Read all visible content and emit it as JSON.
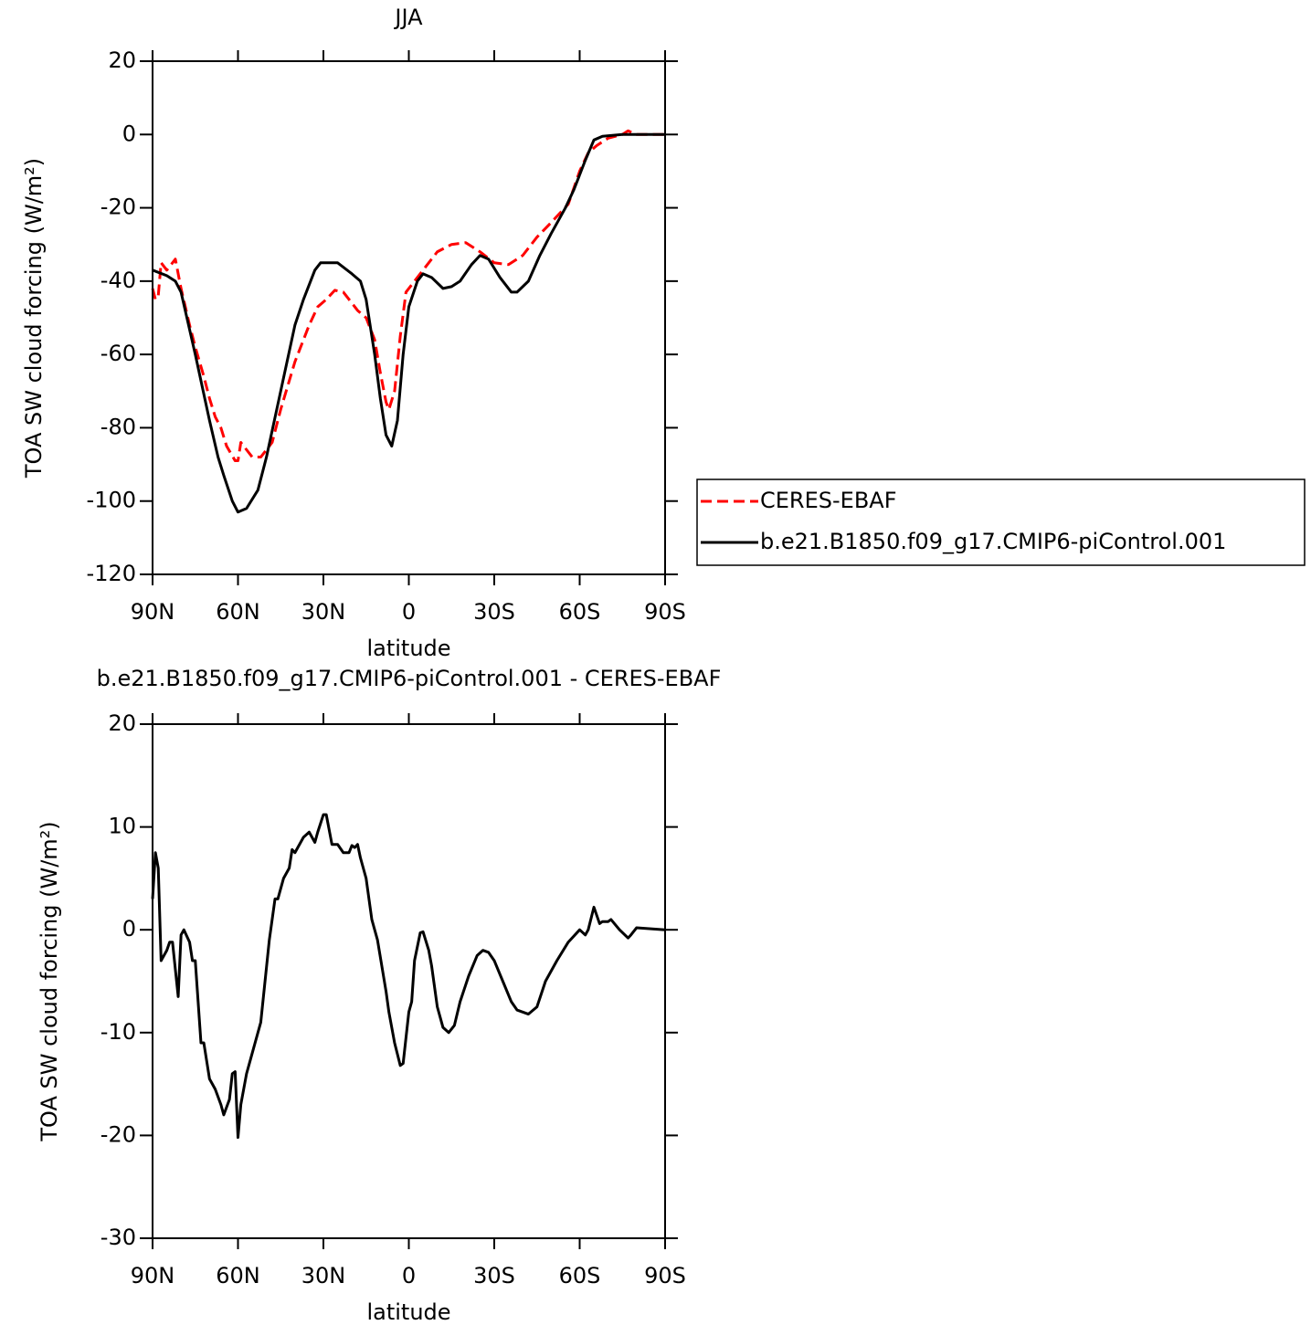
{
  "chart_data": [
    {
      "type": "line",
      "title": "JJA",
      "xlabel": "latitude",
      "ylabel": "TOA SW cloud forcing (W/m²)",
      "xlim": [
        90,
        -90
      ],
      "ylim": [
        -120,
        20
      ],
      "xticks": [
        {
          "value": 90,
          "label": "90N"
        },
        {
          "value": 60,
          "label": "60N"
        },
        {
          "value": 30,
          "label": "30N"
        },
        0,
        {
          "value": -30,
          "label": "30S"
        },
        {
          "value": -60,
          "label": "60S"
        },
        {
          "value": -90,
          "label": "90S"
        }
      ],
      "yticks": [
        -120,
        -100,
        -80,
        -60,
        -40,
        -20,
        0,
        20
      ],
      "legend": "outside right",
      "series": [
        {
          "name": "CERES-EBAF",
          "color": "#ff0000",
          "dash": true,
          "x": [
            90,
            89,
            88,
            87,
            85,
            83,
            82,
            80,
            77,
            75,
            72,
            70,
            68,
            66,
            64,
            61,
            60,
            59,
            57,
            55,
            52,
            48,
            45,
            40,
            35,
            32,
            29,
            26,
            23,
            20,
            18,
            15,
            12,
            10,
            8,
            7,
            5,
            3,
            1,
            -2,
            -5,
            -10,
            -15,
            -20,
            -25,
            -30,
            -35,
            -40,
            -45,
            -50,
            -56,
            -60,
            -63,
            -66,
            -70,
            -75,
            -77,
            -80,
            -90
          ],
          "values": [
            -42,
            -45,
            -44,
            -35,
            -37,
            -35,
            -34,
            -42,
            -52,
            -58,
            -66,
            -72,
            -77,
            -80,
            -85,
            -89,
            -89,
            -84,
            -86,
            -88,
            -88,
            -84,
            -75,
            -62,
            -52,
            -47,
            -45,
            -42.5,
            -43,
            -46,
            -48,
            -50,
            -56,
            -65,
            -73,
            -75,
            -70,
            -55,
            -43,
            -40,
            -37,
            -32,
            -30,
            -29.5,
            -32,
            -35,
            -35.5,
            -33,
            -28,
            -24,
            -19,
            -10,
            -5,
            -3,
            -1,
            0,
            1,
            0,
            0
          ]
        },
        {
          "name": "b.e21.B1850.f09_g17.CMIP6-piControl.001",
          "color": "#000000",
          "dash": false,
          "x": [
            90,
            85,
            82,
            80,
            75,
            70,
            67,
            65,
            62,
            60,
            57,
            53,
            50,
            45,
            40,
            37,
            33,
            31,
            28,
            25,
            20,
            17,
            15,
            12,
            10,
            8,
            6,
            4,
            2,
            0,
            -3,
            -5,
            -8,
            -12,
            -15,
            -18,
            -22,
            -25,
            -28,
            -32,
            -36,
            -38,
            -42,
            -46,
            -50,
            -55,
            -58,
            -62,
            -65,
            -68,
            -75,
            -90
          ],
          "values": [
            -37,
            -38.5,
            -40,
            -43,
            -60,
            -78,
            -88,
            -93,
            -100,
            -103,
            -102,
            -97,
            -88,
            -70,
            -52,
            -45,
            -37,
            -35,
            -35,
            -35,
            -38,
            -40,
            -45,
            -60,
            -72,
            -82,
            -85,
            -78,
            -60,
            -47,
            -40,
            -38,
            -39,
            -42,
            -41.5,
            -40,
            -35.5,
            -33,
            -34,
            -39,
            -43,
            -43,
            -40,
            -33,
            -27,
            -20,
            -15,
            -7,
            -1.5,
            -0.5,
            0,
            0
          ]
        }
      ]
    },
    {
      "type": "line",
      "title": "b.e21.B1850.f09_g17.CMIP6-piControl.001 - CERES-EBAF",
      "xlabel": "latitude",
      "ylabel": "TOA SW cloud forcing (W/m²)",
      "xlim": [
        90,
        -90
      ],
      "ylim": [
        -30,
        20
      ],
      "xticks": [
        {
          "value": 90,
          "label": "90N"
        },
        {
          "value": 60,
          "label": "60N"
        },
        {
          "value": 30,
          "label": "30N"
        },
        0,
        {
          "value": -30,
          "label": "30S"
        },
        {
          "value": -60,
          "label": "60S"
        },
        {
          "value": -90,
          "label": "90S"
        }
      ],
      "yticks": [
        -30,
        -20,
        -10,
        0,
        10,
        20
      ],
      "series": [
        {
          "color": "#000000",
          "dash": false,
          "x": [
            90,
            89,
            88,
            87,
            85,
            84,
            83,
            81,
            80,
            79,
            77,
            76,
            75,
            73,
            72,
            70,
            68,
            66,
            65,
            63,
            62,
            61,
            60,
            59,
            57,
            55,
            52,
            49,
            47,
            46,
            44,
            42,
            41,
            40,
            37,
            35,
            33,
            32,
            30,
            29,
            27,
            25,
            23,
            21,
            20,
            19,
            18,
            17,
            15,
            13,
            11,
            8,
            7,
            5,
            3,
            2,
            0,
            -1,
            -2,
            -4,
            -5,
            -7,
            -8,
            -10,
            -12,
            -14,
            -16,
            -18,
            -21,
            -24,
            -26,
            -28,
            -30,
            -33,
            -36,
            -38,
            -42,
            -45,
            -48,
            -52,
            -56,
            -60,
            -62,
            -63,
            -65,
            -67,
            -68,
            -70,
            -71,
            -74,
            -77,
            -78,
            -80,
            -85,
            -90
          ],
          "values": [
            3,
            7.5,
            6,
            -3,
            -2,
            -1.2,
            -1.2,
            -6.5,
            -0.5,
            0,
            -1.2,
            -3,
            -3,
            -11,
            -11,
            -14.5,
            -15.5,
            -17,
            -18,
            -16.5,
            -14,
            -13.8,
            -20.2,
            -17,
            -14,
            -12,
            -9,
            -1,
            3,
            3,
            5,
            6,
            7.8,
            7.5,
            9,
            9.5,
            8.5,
            9.5,
            11.2,
            11.2,
            8.3,
            8.3,
            7.5,
            7.5,
            8.2,
            8,
            8.3,
            7,
            5,
            1,
            -1,
            -6,
            -8,
            -11,
            -13.2,
            -13,
            -8,
            -7,
            -3,
            -0.3,
            -0.2,
            -2,
            -3.5,
            -7.5,
            -9.5,
            -10,
            -9.3,
            -7,
            -4.5,
            -2.5,
            -2,
            -2.2,
            -3,
            -5,
            -7,
            -7.8,
            -8.2,
            -7.5,
            -5,
            -3,
            -1.2,
            0,
            -0.5,
            0,
            2.2,
            0.6,
            0.8,
            0.8,
            1,
            0,
            -0.8,
            -0.5,
            0.2,
            0.1,
            0
          ]
        }
      ]
    }
  ]
}
